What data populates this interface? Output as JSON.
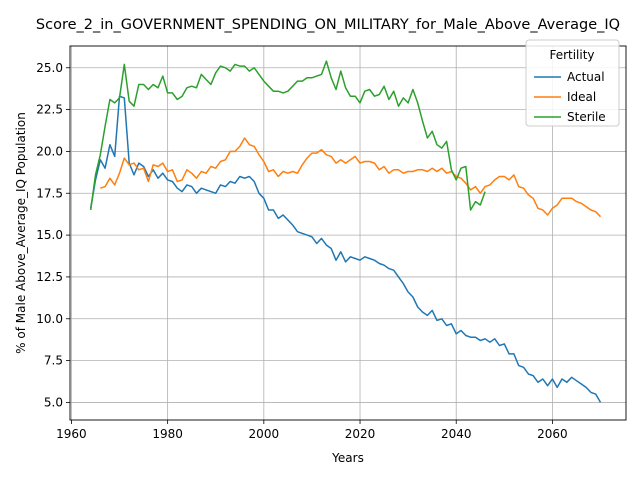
{
  "chart_data": {
    "type": "line",
    "title": "Score_2_in_GOVERNMENT_SPENDING_ON_MILITARY_for_Male_Above_Average_IQ",
    "xlabel": "Years",
    "ylabel": "% of Male Above_Average_IQ Population",
    "xlim": [
      1959.7,
      2075.3
    ],
    "ylim": [
      3.95,
      26.3
    ],
    "xticks": [
      1960,
      1980,
      2000,
      2020,
      2040,
      2060
    ],
    "yticks": [
      5.0,
      7.5,
      10.0,
      12.5,
      15.0,
      17.5,
      20.0,
      22.5,
      25.0
    ],
    "ytick_labels": [
      "5.0",
      "7.5",
      "10.0",
      "12.5",
      "15.0",
      "17.5",
      "20.0",
      "22.5",
      "25.0"
    ],
    "grid": true,
    "legend": {
      "title": "Fertility",
      "placement": "top-right"
    },
    "series": [
      {
        "name": "Actual",
        "color": "#1f77b4",
        "points": [
          [
            1964,
            16.6
          ],
          [
            1965,
            18.3
          ],
          [
            1966,
            19.5
          ],
          [
            1967,
            19.0
          ],
          [
            1968,
            20.4
          ],
          [
            1969,
            19.7
          ],
          [
            1970,
            23.3
          ],
          [
            1971,
            23.2
          ],
          [
            1972,
            19.3
          ],
          [
            1973,
            18.6
          ],
          [
            1974,
            19.3
          ],
          [
            1975,
            19.1
          ],
          [
            1976,
            18.5
          ],
          [
            1977,
            18.9
          ],
          [
            1978,
            18.4
          ],
          [
            1979,
            18.7
          ],
          [
            1980,
            18.3
          ],
          [
            1981,
            18.2
          ],
          [
            1982,
            17.8
          ],
          [
            1983,
            17.6
          ],
          [
            1984,
            18.0
          ],
          [
            1985,
            17.9
          ],
          [
            1986,
            17.5
          ],
          [
            1987,
            17.8
          ],
          [
            1988,
            17.7
          ],
          [
            1989,
            17.6
          ],
          [
            1990,
            17.5
          ],
          [
            1991,
            18.0
          ],
          [
            1992,
            17.9
          ],
          [
            1993,
            18.2
          ],
          [
            1994,
            18.1
          ],
          [
            1995,
            18.5
          ],
          [
            1996,
            18.4
          ],
          [
            1997,
            18.5
          ],
          [
            1998,
            18.2
          ],
          [
            1999,
            17.5
          ],
          [
            2000,
            17.2
          ],
          [
            2001,
            16.5
          ],
          [
            2002,
            16.5
          ],
          [
            2003,
            16.0
          ],
          [
            2004,
            16.2
          ],
          [
            2005,
            15.9
          ],
          [
            2006,
            15.6
          ],
          [
            2007,
            15.2
          ],
          [
            2008,
            15.1
          ],
          [
            2009,
            15.0
          ],
          [
            2010,
            14.9
          ],
          [
            2011,
            14.5
          ],
          [
            2012,
            14.8
          ],
          [
            2013,
            14.4
          ],
          [
            2014,
            14.2
          ],
          [
            2015,
            13.5
          ],
          [
            2016,
            14.0
          ],
          [
            2017,
            13.4
          ],
          [
            2018,
            13.7
          ],
          [
            2019,
            13.6
          ],
          [
            2020,
            13.5
          ],
          [
            2021,
            13.7
          ],
          [
            2022,
            13.6
          ],
          [
            2023,
            13.5
          ],
          [
            2024,
            13.3
          ],
          [
            2025,
            13.2
          ],
          [
            2026,
            13.0
          ],
          [
            2027,
            12.9
          ],
          [
            2028,
            12.5
          ],
          [
            2029,
            12.1
          ],
          [
            2030,
            11.6
          ],
          [
            2031,
            11.3
          ],
          [
            2032,
            10.7
          ],
          [
            2033,
            10.4
          ],
          [
            2034,
            10.2
          ],
          [
            2035,
            10.5
          ],
          [
            2036,
            9.9
          ],
          [
            2037,
            10.0
          ],
          [
            2038,
            9.6
          ],
          [
            2039,
            9.7
          ],
          [
            2040,
            9.1
          ],
          [
            2041,
            9.3
          ],
          [
            2042,
            9.0
          ],
          [
            2043,
            8.9
          ],
          [
            2044,
            8.9
          ],
          [
            2045,
            8.7
          ],
          [
            2046,
            8.8
          ],
          [
            2047,
            8.6
          ],
          [
            2048,
            8.8
          ],
          [
            2049,
            8.4
          ],
          [
            2050,
            8.5
          ],
          [
            2051,
            7.9
          ],
          [
            2052,
            7.9
          ],
          [
            2053,
            7.2
          ],
          [
            2054,
            7.1
          ],
          [
            2055,
            6.7
          ],
          [
            2056,
            6.6
          ],
          [
            2057,
            6.2
          ],
          [
            2058,
            6.4
          ],
          [
            2059,
            6.0
          ],
          [
            2060,
            6.4
          ],
          [
            2061,
            5.9
          ],
          [
            2062,
            6.4
          ],
          [
            2063,
            6.2
          ],
          [
            2064,
            6.5
          ],
          [
            2065,
            6.3
          ],
          [
            2066,
            6.1
          ],
          [
            2067,
            5.9
          ],
          [
            2068,
            5.6
          ],
          [
            2069,
            5.5
          ],
          [
            2070,
            5.0
          ]
        ]
      },
      {
        "name": "Ideal",
        "color": "#ff7f0e",
        "points": [
          [
            1966,
            17.8
          ],
          [
            1967,
            17.9
          ],
          [
            1968,
            18.4
          ],
          [
            1969,
            18.0
          ],
          [
            1970,
            18.7
          ],
          [
            1971,
            19.6
          ],
          [
            1972,
            19.2
          ],
          [
            1973,
            19.3
          ],
          [
            1974,
            18.9
          ],
          [
            1975,
            19.0
          ],
          [
            1976,
            18.2
          ],
          [
            1977,
            19.2
          ],
          [
            1978,
            19.1
          ],
          [
            1979,
            19.3
          ],
          [
            1980,
            18.8
          ],
          [
            1981,
            18.9
          ],
          [
            1982,
            18.2
          ],
          [
            1983,
            18.3
          ],
          [
            1984,
            18.9
          ],
          [
            1985,
            18.7
          ],
          [
            1986,
            18.4
          ],
          [
            1987,
            18.8
          ],
          [
            1988,
            18.7
          ],
          [
            1989,
            19.1
          ],
          [
            1990,
            19.0
          ],
          [
            1991,
            19.4
          ],
          [
            1992,
            19.5
          ],
          [
            1993,
            20.0
          ],
          [
            1994,
            20.0
          ],
          [
            1995,
            20.3
          ],
          [
            1996,
            20.8
          ],
          [
            1997,
            20.4
          ],
          [
            1998,
            20.3
          ],
          [
            1999,
            19.8
          ],
          [
            2000,
            19.4
          ],
          [
            2001,
            18.8
          ],
          [
            2002,
            18.9
          ],
          [
            2003,
            18.5
          ],
          [
            2004,
            18.8
          ],
          [
            2005,
            18.7
          ],
          [
            2006,
            18.8
          ],
          [
            2007,
            18.7
          ],
          [
            2008,
            19.2
          ],
          [
            2009,
            19.6
          ],
          [
            2010,
            19.9
          ],
          [
            2011,
            19.9
          ],
          [
            2012,
            20.1
          ],
          [
            2013,
            19.8
          ],
          [
            2014,
            19.7
          ],
          [
            2015,
            19.3
          ],
          [
            2016,
            19.5
          ],
          [
            2017,
            19.3
          ],
          [
            2018,
            19.5
          ],
          [
            2019,
            19.7
          ],
          [
            2020,
            19.3
          ],
          [
            2021,
            19.4
          ],
          [
            2022,
            19.4
          ],
          [
            2023,
            19.3
          ],
          [
            2024,
            18.9
          ],
          [
            2025,
            19.1
          ],
          [
            2026,
            18.7
          ],
          [
            2027,
            18.9
          ],
          [
            2028,
            18.9
          ],
          [
            2029,
            18.7
          ],
          [
            2030,
            18.8
          ],
          [
            2031,
            18.8
          ],
          [
            2032,
            18.9
          ],
          [
            2033,
            18.9
          ],
          [
            2034,
            18.8
          ],
          [
            2035,
            19.0
          ],
          [
            2036,
            18.8
          ],
          [
            2037,
            19.0
          ],
          [
            2038,
            18.7
          ],
          [
            2039,
            18.8
          ],
          [
            2040,
            18.5
          ],
          [
            2041,
            18.4
          ],
          [
            2042,
            18.1
          ],
          [
            2043,
            17.7
          ],
          [
            2044,
            17.9
          ],
          [
            2045,
            17.5
          ],
          [
            2046,
            17.9
          ],
          [
            2047,
            18.0
          ],
          [
            2048,
            18.3
          ],
          [
            2049,
            18.5
          ],
          [
            2050,
            18.5
          ],
          [
            2051,
            18.3
          ],
          [
            2052,
            18.6
          ],
          [
            2053,
            17.9
          ],
          [
            2054,
            17.8
          ],
          [
            2055,
            17.4
          ],
          [
            2056,
            17.2
          ],
          [
            2057,
            16.6
          ],
          [
            2058,
            16.5
          ],
          [
            2059,
            16.2
          ],
          [
            2060,
            16.6
          ],
          [
            2061,
            16.8
          ],
          [
            2062,
            17.2
          ],
          [
            2063,
            17.2
          ],
          [
            2064,
            17.2
          ],
          [
            2065,
            17.0
          ],
          [
            2066,
            16.9
          ],
          [
            2067,
            16.7
          ],
          [
            2068,
            16.5
          ],
          [
            2069,
            16.4
          ],
          [
            2070,
            16.1
          ]
        ]
      },
      {
        "name": "Sterile",
        "color": "#2ca02c",
        "points": [
          [
            1964,
            16.5
          ],
          [
            1965,
            18.6
          ],
          [
            1966,
            19.8
          ],
          [
            1967,
            21.5
          ],
          [
            1968,
            23.1
          ],
          [
            1969,
            22.9
          ],
          [
            1970,
            23.2
          ],
          [
            1971,
            25.2
          ],
          [
            1972,
            23.0
          ],
          [
            1973,
            22.7
          ],
          [
            1974,
            24.0
          ],
          [
            1975,
            24.0
          ],
          [
            1976,
            23.7
          ],
          [
            1977,
            24.0
          ],
          [
            1978,
            23.8
          ],
          [
            1979,
            24.5
          ],
          [
            1980,
            23.5
          ],
          [
            1981,
            23.5
          ],
          [
            1982,
            23.1
          ],
          [
            1983,
            23.3
          ],
          [
            1984,
            23.8
          ],
          [
            1985,
            23.9
          ],
          [
            1986,
            23.8
          ],
          [
            1987,
            24.6
          ],
          [
            1988,
            24.3
          ],
          [
            1989,
            24.0
          ],
          [
            1990,
            24.7
          ],
          [
            1991,
            25.1
          ],
          [
            1992,
            25.0
          ],
          [
            1993,
            24.8
          ],
          [
            1994,
            25.2
          ],
          [
            1995,
            25.1
          ],
          [
            1996,
            25.1
          ],
          [
            1997,
            24.8
          ],
          [
            1998,
            25.0
          ],
          [
            1999,
            24.6
          ],
          [
            2000,
            24.2
          ],
          [
            2001,
            23.9
          ],
          [
            2002,
            23.6
          ],
          [
            2003,
            23.6
          ],
          [
            2004,
            23.5
          ],
          [
            2005,
            23.6
          ],
          [
            2006,
            23.9
          ],
          [
            2007,
            24.2
          ],
          [
            2008,
            24.2
          ],
          [
            2009,
            24.4
          ],
          [
            2010,
            24.4
          ],
          [
            2011,
            24.5
          ],
          [
            2012,
            24.6
          ],
          [
            2013,
            25.4
          ],
          [
            2014,
            24.4
          ],
          [
            2015,
            23.7
          ],
          [
            2016,
            24.8
          ],
          [
            2017,
            23.8
          ],
          [
            2018,
            23.3
          ],
          [
            2019,
            23.3
          ],
          [
            2020,
            22.9
          ],
          [
            2021,
            23.6
          ],
          [
            2022,
            23.7
          ],
          [
            2023,
            23.3
          ],
          [
            2024,
            23.4
          ],
          [
            2025,
            23.9
          ],
          [
            2026,
            23.1
          ],
          [
            2027,
            23.6
          ],
          [
            2028,
            22.7
          ],
          [
            2029,
            23.2
          ],
          [
            2030,
            22.9
          ],
          [
            2031,
            23.7
          ],
          [
            2032,
            22.9
          ],
          [
            2033,
            21.8
          ],
          [
            2034,
            20.8
          ],
          [
            2035,
            21.2
          ],
          [
            2036,
            20.4
          ],
          [
            2037,
            20.2
          ],
          [
            2038,
            20.6
          ],
          [
            2039,
            18.9
          ],
          [
            2040,
            18.3
          ],
          [
            2041,
            19.0
          ],
          [
            2042,
            19.1
          ],
          [
            2043,
            16.5
          ],
          [
            2044,
            17.0
          ],
          [
            2045,
            16.8
          ],
          [
            2046,
            17.6
          ]
        ]
      }
    ]
  }
}
